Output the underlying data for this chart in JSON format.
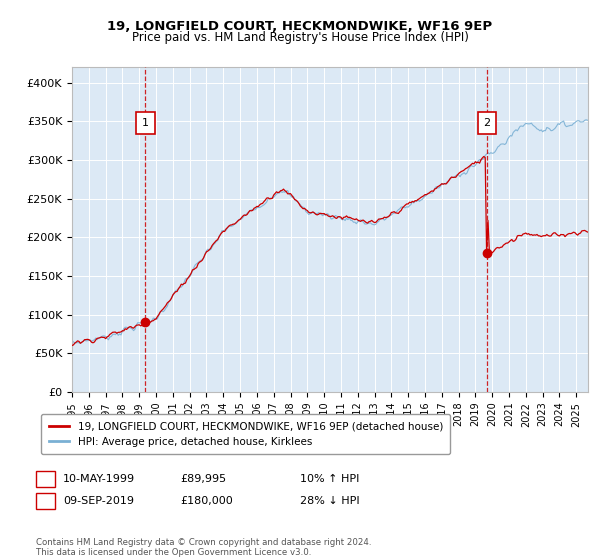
{
  "title": "19, LONGFIELD COURT, HECKMONDWIKE, WF16 9EP",
  "subtitle": "Price paid vs. HM Land Registry's House Price Index (HPI)",
  "ylabel_ticks": [
    "£0",
    "£50K",
    "£100K",
    "£150K",
    "£200K",
    "£250K",
    "£300K",
    "£350K",
    "£400K"
  ],
  "ytick_values": [
    0,
    50000,
    100000,
    150000,
    200000,
    250000,
    300000,
    350000,
    400000
  ],
  "ylim": [
    0,
    420000
  ],
  "xlim_start": 1995.0,
  "xlim_end": 2025.7,
  "background_color": "#dce9f5",
  "grid_color": "#ffffff",
  "red_line_color": "#cc0000",
  "blue_line_color": "#7ab0d4",
  "marker1_date": 1999.36,
  "marker1_price": 89995,
  "marker1_label": "1",
  "marker2_date": 2019.69,
  "marker2_price": 180000,
  "marker2_label": "2",
  "legend_line1": "19, LONGFIELD COURT, HECKMONDWIKE, WF16 9EP (detached house)",
  "legend_line2": "HPI: Average price, detached house, Kirklees",
  "row1_date": "10-MAY-1999",
  "row1_price": "£89,995",
  "row1_hpi": "10% ↑ HPI",
  "row2_date": "09-SEP-2019",
  "row2_price": "£180,000",
  "row2_hpi": "28% ↓ HPI",
  "footer": "Contains HM Land Registry data © Crown copyright and database right 2024.\nThis data is licensed under the Open Government Licence v3.0.",
  "xtick_years": [
    1995,
    1996,
    1997,
    1998,
    1999,
    2000,
    2001,
    2002,
    2003,
    2004,
    2005,
    2006,
    2007,
    2008,
    2009,
    2010,
    2011,
    2012,
    2013,
    2014,
    2015,
    2016,
    2017,
    2018,
    2019,
    2020,
    2021,
    2022,
    2023,
    2024,
    2025
  ]
}
